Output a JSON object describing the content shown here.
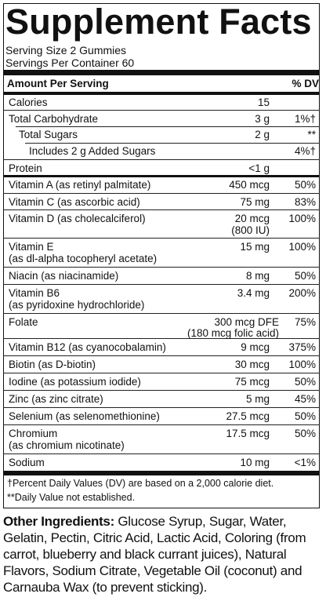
{
  "panel": {
    "title": "Supplement Facts",
    "serving_size": "Serving Size 2 Gummies",
    "servings_per_container": "Servings Per Container 60",
    "header_amount": "Amount Per Serving",
    "header_dv": "% DV"
  },
  "rows": [
    {
      "name": "Calories",
      "name2": "",
      "amount": "15",
      "amount2": "",
      "dv": ""
    },
    {
      "name": "Total Carbohydrate",
      "name2": "",
      "amount": "3 g",
      "amount2": "",
      "dv": "1%†"
    },
    {
      "name": "Total Sugars",
      "name2": "",
      "amount": "2 g",
      "amount2": "",
      "dv": "**"
    },
    {
      "name": "Includes 2 g Added Sugars",
      "name2": "",
      "amount": "",
      "amount2": "",
      "dv": "4%†"
    },
    {
      "name": "Protein",
      "name2": "",
      "amount": "<1 g",
      "amount2": "",
      "dv": ""
    },
    {
      "name": "Vitamin A (as retinyl palmitate)",
      "name2": "",
      "amount": "450 mcg",
      "amount2": "",
      "dv": "50%"
    },
    {
      "name": "Vitamin C (as ascorbic acid)",
      "name2": "",
      "amount": "75 mg",
      "amount2": "",
      "dv": "83%"
    },
    {
      "name": "Vitamin D (as cholecalciferol)",
      "name2": "",
      "amount": "20 mcg",
      "amount2": "(800 IU)",
      "dv": "100%"
    },
    {
      "name": "Vitamin E",
      "name2": "(as dl-alpha tocopheryl acetate)",
      "amount": "15 mg",
      "amount2": "",
      "dv": "100%"
    },
    {
      "name": "Niacin (as niacinamide)",
      "name2": "",
      "amount": "8 mg",
      "amount2": "",
      "dv": "50%"
    },
    {
      "name": "Vitamin B6",
      "name2": "(as pyridoxine hydrochloride)",
      "amount": "3.4 mg",
      "amount2": "",
      "dv": "200%"
    },
    {
      "name": "Folate",
      "name2": "",
      "amount": "300 mcg DFE",
      "amount2": "(180 mcg folic acid)",
      "dv": "75%"
    },
    {
      "name": "Vitamin B12 (as cyanocobalamin)",
      "name2": "",
      "amount": "9 mcg",
      "amount2": "",
      "dv": "375%"
    },
    {
      "name": "Biotin (as D-biotin)",
      "name2": "",
      "amount": "30 mcg",
      "amount2": "",
      "dv": "100%"
    },
    {
      "name": "Iodine (as potassium iodide)",
      "name2": "",
      "amount": "75 mcg",
      "amount2": "",
      "dv": "50%"
    },
    {
      "name": "Zinc (as zinc citrate)",
      "name2": "",
      "amount": "5 mg",
      "amount2": "",
      "dv": "45%"
    },
    {
      "name": "Selenium (as selenomethionine)",
      "name2": "",
      "amount": "27.5 mcg",
      "amount2": "",
      "dv": "50%"
    },
    {
      "name": "Chromium",
      "name2": "(as chromium nicotinate)",
      "amount": "17.5 mcg",
      "amount2": "",
      "dv": "50%"
    },
    {
      "name": "Sodium",
      "name2": "",
      "amount": "10 mg",
      "amount2": "",
      "dv": "<1%"
    }
  ],
  "footnotes": {
    "dagger": "†Percent Daily Values (DV) are based on a 2,000 calorie diet.",
    "double_star": "**Daily Value not established."
  },
  "other_ingredients": {
    "label": "Other Ingredients:",
    "text": " Glucose Syrup, Sugar, Water, Gelatin, Pectin, Citric Acid, Lactic Acid, Coloring (from carrot, blueberry and black currant juices), Natural Flavors, Sodium Citrate, Vegetable Oil (coconut) and Carnauba Wax (to prevent sticking)."
  }
}
